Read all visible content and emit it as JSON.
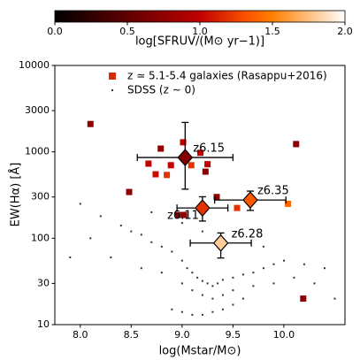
{
  "chart_data": {
    "type": "scatter",
    "x_label": "log(Mstar/M⊙)",
    "y_label": "EW(Hα) [Å]",
    "xlim": [
      7.75,
      10.6
    ],
    "ylim": [
      10,
      10000
    ],
    "y_scale": "log",
    "xticks": [
      {
        "value": 8,
        "label": "8.0"
      },
      8.5,
      {
        "value": 9,
        "label": "9.0"
      },
      9.5,
      {
        "value": 10,
        "label": "10.0"
      }
    ],
    "yticks": [
      10,
      30,
      100,
      300,
      1000,
      3000,
      10000
    ],
    "legend_loc": "upper right",
    "colorbar": {
      "label": "log[SFRUV/(M⊙ yr−1)]",
      "colormap": "gist_heat",
      "lim": [
        0,
        2
      ],
      "ticks": [
        {
          "value": 0,
          "label": "0.0"
        },
        0.5,
        {
          "value": 1,
          "label": "1.0"
        },
        1.5,
        {
          "value": 2,
          "label": "2.0"
        }
      ]
    },
    "series": [
      {
        "name": "z ≃ 5.1-5.4 galaxies (Rasappu+2016)",
        "marker": "square",
        "color": "#d62a0a",
        "x": [
          8.1,
          8.48,
          8.67,
          8.74,
          8.79,
          8.85,
          8.89,
          9.01,
          8.96,
          9.02,
          9.09,
          9.18,
          9.25,
          9.23,
          9.34,
          9.54,
          10.04,
          10.12,
          10.19
        ],
        "values": [
          2100,
          343,
          730,
          550,
          1090,
          540,
          700,
          1290,
          186,
          186,
          700,
          975,
          720,
          590,
          300,
          224,
          250,
          1230,
          20
        ],
        "sfr": [
          0.75,
          0.75,
          1.0,
          1.05,
          0.75,
          1.2,
          1.0,
          1.0,
          0.75,
          0.75,
          1.2,
          1.0,
          1.0,
          0.75,
          0.75,
          1.2,
          1.4,
          0.75,
          0.75
        ]
      },
      {
        "name": "SDSS (z ∼ 0)",
        "marker": "dot",
        "color": "#333333",
        "x": [
          8.0,
          8.2,
          8.4,
          8.5,
          8.6,
          8.7,
          8.8,
          8.9,
          9.0,
          9.05,
          9.1,
          9.15,
          9.2,
          9.25,
          9.3,
          9.35,
          9.4,
          9.5,
          9.6,
          9.7,
          9.8,
          9.9,
          10.0,
          10.2,
          10.4,
          8.3,
          8.6,
          8.8,
          9.0,
          9.1,
          9.2,
          9.3,
          9.4,
          9.5,
          9.7,
          9.9,
          10.1,
          8.9,
          9.0,
          9.1,
          9.2,
          9.3,
          9.4,
          9.5,
          9.6,
          8.7,
          9.0,
          9.2,
          9.4,
          9.8,
          10.3,
          7.9,
          8.1,
          10.5
        ],
        "values": [
          250,
          180,
          140,
          120,
          110,
          90,
          80,
          70,
          55,
          45,
          40,
          35,
          32,
          30,
          28,
          30,
          33,
          35,
          38,
          40,
          45,
          50,
          55,
          50,
          45,
          60,
          45,
          40,
          30,
          25,
          22,
          20,
          22,
          25,
          28,
          30,
          35,
          15,
          14,
          13,
          13,
          14,
          15,
          17,
          20,
          200,
          150,
          120,
          90,
          80,
          30,
          60,
          100,
          20
        ]
      },
      {
        "marker": "diamond",
        "labels": [
          "z6.15",
          "z6.11",
          "z6.35",
          "z6.28"
        ],
        "x": [
          9.03,
          9.2,
          9.67,
          9.38
        ],
        "values": [
          860,
          224,
          277,
          88
        ],
        "xerr": [
          0.47,
          0.25,
          0.35,
          0.3
        ],
        "y_lower": [
          370,
          158,
          210,
          59
        ],
        "y_upper": [
          2190,
          302,
          351,
          115
        ],
        "sfr": [
          0.7,
          1.2,
          1.35,
          1.8
        ]
      }
    ]
  }
}
